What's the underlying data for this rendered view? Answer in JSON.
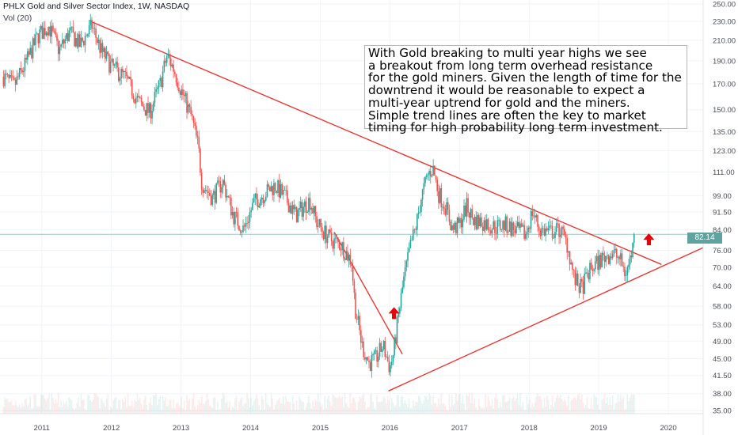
{
  "header": {
    "title": "PHLX Gold and Silver Sector Index, 1W, NASDAQ",
    "volume_label": "Vol (20)"
  },
  "annotation": {
    "text": "With Gold breaking to multi year highs we see\na breakout from long term overhead resistance\nfor the gold miners. Given the length of time for the\ndowntrend it would be reasonable to expect a\nmulti-year uptrend for gold and the miners.\nSimple trend lines are often the key to market\ntiming for high probability long term investment."
  },
  "colors": {
    "up": "#26a69a",
    "down": "#ef5350",
    "trendline": "#e53935",
    "arrow": "#e8000b",
    "price_line": "#5fa3a1",
    "grid": "#f0f3fa",
    "axis_text": "#4a4e5a"
  },
  "icons": [
    "up-arrow-icon",
    "up-arrow-icon"
  ],
  "chart_data": {
    "type": "candlestick",
    "title": "PHLX Gold and Silver Sector Index, 1W, NASDAQ",
    "scale": "log",
    "y_ticks": [
      35.0,
      38.0,
      41.5,
      45.0,
      49.0,
      53.0,
      58.0,
      64.0,
      70.0,
      76.0,
      84.0,
      91.5,
      99.0,
      111.0,
      123.0,
      135.0,
      150.0,
      170.0,
      190.0,
      210.0,
      230.0,
      250.0
    ],
    "x_ticks": [
      "2011",
      "2012",
      "2013",
      "2014",
      "2015",
      "2016",
      "2017",
      "2018",
      "2019",
      "2020"
    ],
    "ylim": [
      34.5,
      255
    ],
    "xlim": [
      2010.4,
      2020.5
    ],
    "last_price": "82.14",
    "price_path": [
      [
        2010.45,
        176
      ],
      [
        2010.6,
        168
      ],
      [
        2010.75,
        185
      ],
      [
        2010.95,
        215
      ],
      [
        2011.1,
        225
      ],
      [
        2011.25,
        200
      ],
      [
        2011.4,
        218
      ],
      [
        2011.55,
        205
      ],
      [
        2011.72,
        225
      ],
      [
        2011.85,
        200
      ],
      [
        2012.0,
        185
      ],
      [
        2012.2,
        175
      ],
      [
        2012.4,
        155
      ],
      [
        2012.55,
        148
      ],
      [
        2012.7,
        170
      ],
      [
        2012.8,
        195
      ],
      [
        2012.9,
        182
      ],
      [
        2013.0,
        165
      ],
      [
        2013.15,
        145
      ],
      [
        2013.25,
        125
      ],
      [
        2013.3,
        105
      ],
      [
        2013.45,
        98
      ],
      [
        2013.6,
        106
      ],
      [
        2013.75,
        90
      ],
      [
        2013.9,
        84
      ],
      [
        2014.05,
        96
      ],
      [
        2014.2,
        100
      ],
      [
        2014.35,
        104
      ],
      [
        2014.5,
        98
      ],
      [
        2014.65,
        90
      ],
      [
        2014.85,
        97
      ],
      [
        2014.95,
        87
      ],
      [
        2015.05,
        83
      ],
      [
        2015.15,
        80
      ],
      [
        2015.3,
        78
      ],
      [
        2015.45,
        72
      ],
      [
        2015.5,
        58
      ],
      [
        2015.6,
        48
      ],
      [
        2015.7,
        44
      ],
      [
        2015.8,
        45
      ],
      [
        2015.9,
        48
      ],
      [
        2016.0,
        43
      ],
      [
        2016.05,
        46
      ],
      [
        2016.12,
        55
      ],
      [
        2016.2,
        66
      ],
      [
        2016.3,
        78
      ],
      [
        2016.38,
        86
      ],
      [
        2016.45,
        98
      ],
      [
        2016.55,
        110
      ],
      [
        2016.62,
        113
      ],
      [
        2016.7,
        100
      ],
      [
        2016.8,
        94
      ],
      [
        2016.9,
        84
      ],
      [
        2017.0,
        86
      ],
      [
        2017.1,
        94
      ],
      [
        2017.2,
        88
      ],
      [
        2017.35,
        87
      ],
      [
        2017.5,
        85
      ],
      [
        2017.65,
        86
      ],
      [
        2017.8,
        84
      ],
      [
        2017.95,
        82
      ],
      [
        2018.05,
        92
      ],
      [
        2018.15,
        84
      ],
      [
        2018.3,
        83
      ],
      [
        2018.45,
        84
      ],
      [
        2018.55,
        78
      ],
      [
        2018.65,
        66
      ],
      [
        2018.75,
        63
      ],
      [
        2018.85,
        68
      ],
      [
        2018.95,
        71
      ],
      [
        2019.1,
        74
      ],
      [
        2019.2,
        75
      ],
      [
        2019.3,
        73
      ],
      [
        2019.38,
        68
      ],
      [
        2019.42,
        70
      ],
      [
        2019.48,
        76
      ],
      [
        2019.52,
        82.14
      ]
    ],
    "trendlines": [
      {
        "from": [
          2011.7,
          230
        ],
        "to": [
          2019.9,
          71
        ]
      },
      {
        "from": [
          2015.2,
          83
        ],
        "to": [
          2016.18,
          46
        ]
      },
      {
        "from": [
          2015.98,
          38.5
        ],
        "to": [
          2020.5,
          77
        ]
      }
    ],
    "markers": [
      {
        "x": 2016.06,
        "y": 56,
        "icon": "up-arrow-icon"
      },
      {
        "x": 2019.72,
        "y": 80,
        "icon": "up-arrow-icon"
      }
    ]
  }
}
